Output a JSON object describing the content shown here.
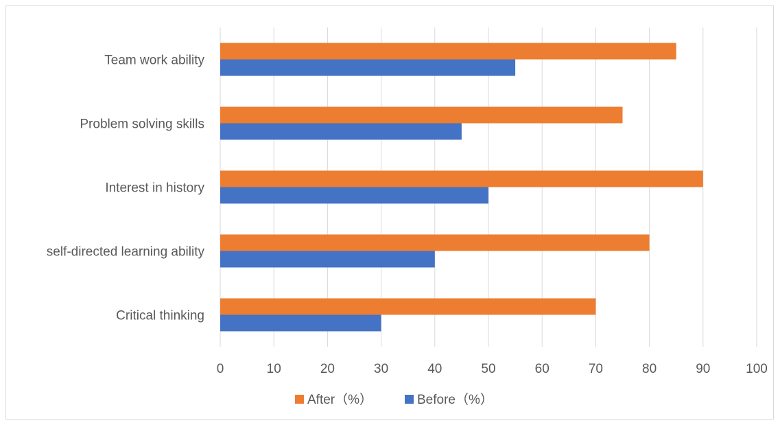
{
  "chart_data": {
    "type": "bar",
    "orientation": "horizontal",
    "categories": [
      "Team work ability",
      "Problem solving skills",
      "Interest in history",
      "self-directed learning ability",
      "Critical thinking"
    ],
    "series": [
      {
        "name": "After（%）",
        "color": "#ED7D31",
        "values": [
          85,
          75,
          90,
          80,
          70
        ]
      },
      {
        "name": "Before（%）",
        "color": "#4472C4",
        "values": [
          55,
          45,
          50,
          40,
          30
        ]
      }
    ],
    "xlim": [
      0,
      100
    ],
    "xticks": [
      "0",
      "10",
      "20",
      "30",
      "40",
      "50",
      "60",
      "70",
      "80",
      "90",
      "100"
    ],
    "grid": "vertical",
    "legend_position": "bottom"
  }
}
